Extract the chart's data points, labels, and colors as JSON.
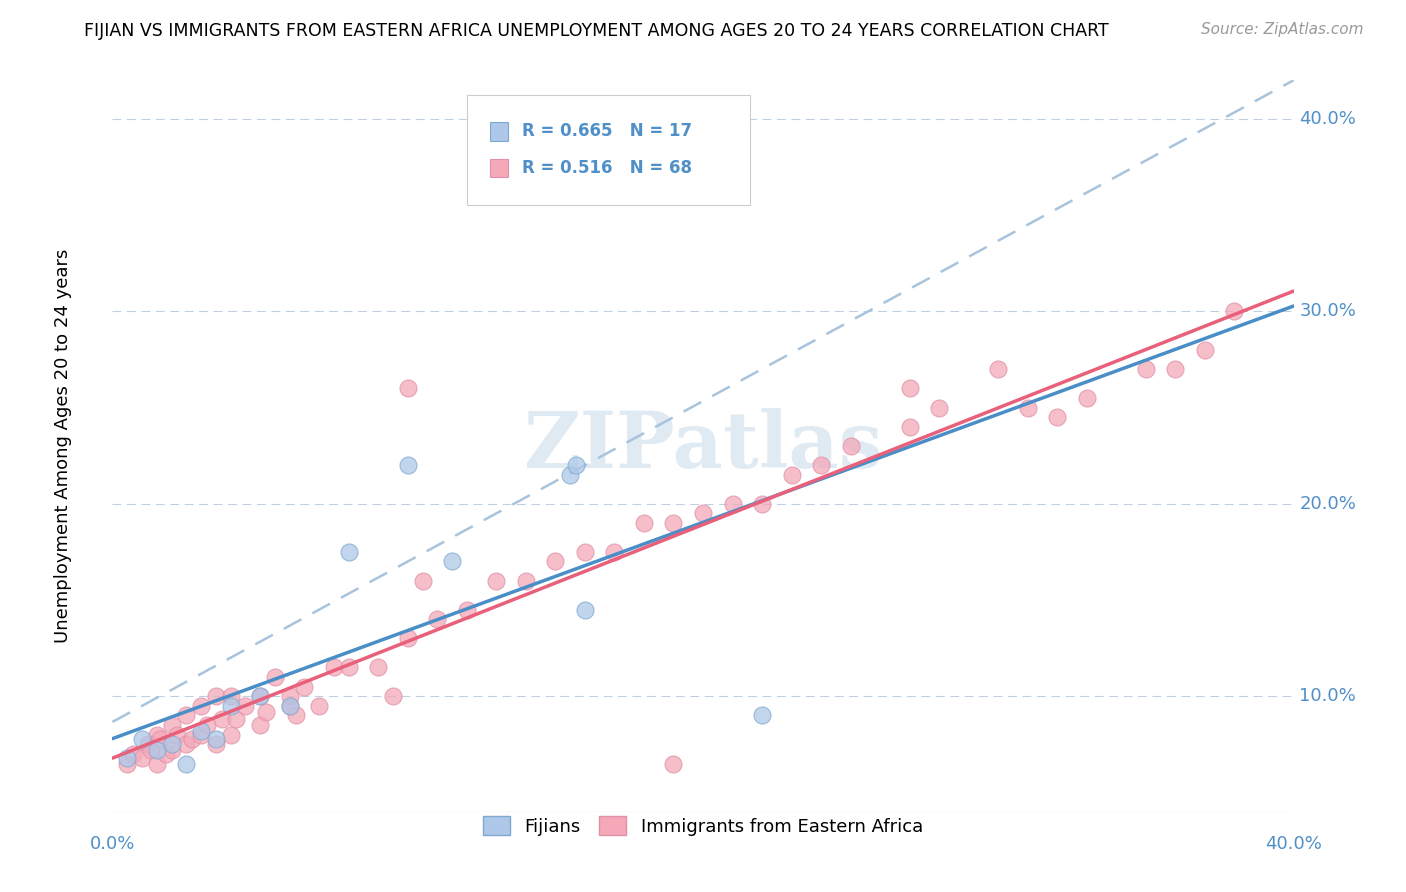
{
  "title": "FIJIAN VS IMMIGRANTS FROM EASTERN AFRICA UNEMPLOYMENT AMONG AGES 20 TO 24 YEARS CORRELATION CHART",
  "source": "Source: ZipAtlas.com",
  "ylabel": "Unemployment Among Ages 20 to 24 years",
  "xrange": [
    0.0,
    0.4
  ],
  "yrange": [
    0.04,
    0.42
  ],
  "fijian_R": 0.665,
  "fijian_N": 17,
  "eastern_R": 0.516,
  "eastern_N": 68,
  "legend_label1": "Fijians",
  "legend_label2": "Immigrants from Eastern Africa",
  "color_fijian": "#adc8e8",
  "color_eastern": "#f4a8b8",
  "color_fijian_line": "#4a8ec8",
  "color_eastern_line": "#e8607a",
  "color_trendline_dash": "#a8c4dc",
  "watermark": "ZIPatlas",
  "fijian_x": [
    0.005,
    0.01,
    0.015,
    0.02,
    0.025,
    0.03,
    0.035,
    0.04,
    0.05,
    0.06,
    0.08,
    0.1,
    0.115,
    0.155,
    0.157,
    0.16,
    0.22
  ],
  "fijian_y": [
    0.068,
    0.078,
    0.072,
    0.075,
    0.065,
    0.082,
    0.078,
    0.095,
    0.1,
    0.095,
    0.175,
    0.22,
    0.17,
    0.215,
    0.22,
    0.145,
    0.09
  ],
  "eastern_x": [
    0.005,
    0.007,
    0.01,
    0.012,
    0.013,
    0.015,
    0.015,
    0.016,
    0.018,
    0.02,
    0.02,
    0.022,
    0.025,
    0.025,
    0.027,
    0.03,
    0.03,
    0.032,
    0.035,
    0.035,
    0.037,
    0.04,
    0.04,
    0.042,
    0.045,
    0.05,
    0.05,
    0.052,
    0.055,
    0.06,
    0.06,
    0.062,
    0.065,
    0.07,
    0.075,
    0.08,
    0.09,
    0.095,
    0.1,
    0.105,
    0.11,
    0.12,
    0.13,
    0.14,
    0.15,
    0.16,
    0.17,
    0.18,
    0.19,
    0.2,
    0.21,
    0.22,
    0.23,
    0.24,
    0.25,
    0.27,
    0.28,
    0.3,
    0.31,
    0.32,
    0.33,
    0.35,
    0.36,
    0.37,
    0.38,
    0.1,
    0.19,
    0.27
  ],
  "eastern_y": [
    0.065,
    0.07,
    0.068,
    0.075,
    0.072,
    0.065,
    0.08,
    0.078,
    0.07,
    0.072,
    0.085,
    0.08,
    0.075,
    0.09,
    0.078,
    0.08,
    0.095,
    0.085,
    0.075,
    0.1,
    0.088,
    0.08,
    0.1,
    0.088,
    0.095,
    0.1,
    0.085,
    0.092,
    0.11,
    0.095,
    0.1,
    0.09,
    0.105,
    0.095,
    0.115,
    0.115,
    0.115,
    0.1,
    0.13,
    0.16,
    0.14,
    0.145,
    0.16,
    0.16,
    0.17,
    0.175,
    0.175,
    0.19,
    0.19,
    0.195,
    0.2,
    0.2,
    0.215,
    0.22,
    0.23,
    0.24,
    0.25,
    0.27,
    0.25,
    0.245,
    0.255,
    0.27,
    0.27,
    0.28,
    0.3,
    0.26,
    0.065,
    0.26
  ],
  "ytick_vals": [
    0.1,
    0.2,
    0.3,
    0.4
  ],
  "ytick_labels": [
    "10.0%",
    "20.0%",
    "30.0%",
    "40.0%"
  ]
}
